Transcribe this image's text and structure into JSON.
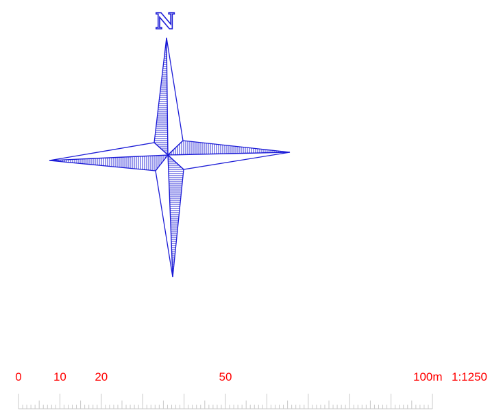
{
  "compass": {
    "north_label": "N",
    "color": "#1a1ad6",
    "icon": "north-arrow-compass-rose-icon"
  },
  "scale_bar": {
    "unit": "m",
    "ratio_label": "1:1250",
    "label_color": "#ff0000",
    "tick_color": "#c8c8c8",
    "labels": [
      "0",
      "10",
      "20",
      "50",
      "100m"
    ],
    "label_values": [
      0,
      10,
      20,
      50,
      100
    ],
    "total_length": 100,
    "minor_tick_interval": 1,
    "mid_tick_interval": 5,
    "major_tick_interval": 10
  }
}
